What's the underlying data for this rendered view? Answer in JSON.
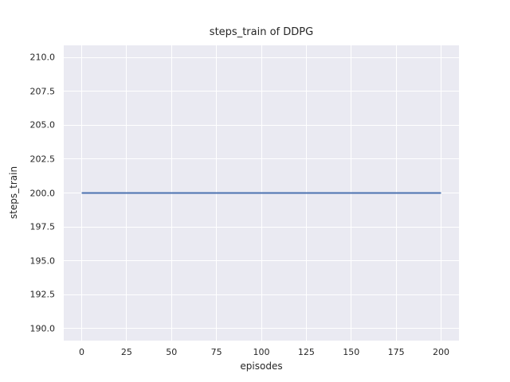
{
  "chart_data": {
    "type": "line",
    "title": "steps_train of DDPG",
    "xlabel": "episodes",
    "ylabel": "steps_train",
    "x_ticks": [
      0,
      25,
      50,
      75,
      100,
      125,
      150,
      175,
      200
    ],
    "x_tick_labels": [
      "0",
      "25",
      "50",
      "75",
      "100",
      "125",
      "150",
      "175",
      "200"
    ],
    "y_ticks": [
      210.0,
      207.5,
      205.0,
      202.5,
      200.0,
      197.5,
      195.0,
      192.5,
      190.0
    ],
    "y_tick_labels": [
      "210.0",
      "207.5",
      "205.0",
      "202.5",
      "200.0",
      "197.5",
      "195.0",
      "192.5",
      "190.0"
    ],
    "xlim": [
      -10,
      210
    ],
    "ylim": [
      189.1,
      210.9
    ],
    "grid": true,
    "legend": "none",
    "series": [
      {
        "name": "steps_train",
        "x": [
          0,
          200
        ],
        "y": [
          200,
          200
        ],
        "constant_value": 200
      }
    ],
    "style": {
      "figure_facecolor": "#ffffff",
      "axes_facecolor": "#eaeaf2",
      "grid_color": "#ffffff",
      "line_color": "#4c72b0",
      "text_color": "#262626",
      "line_width": 2
    }
  }
}
